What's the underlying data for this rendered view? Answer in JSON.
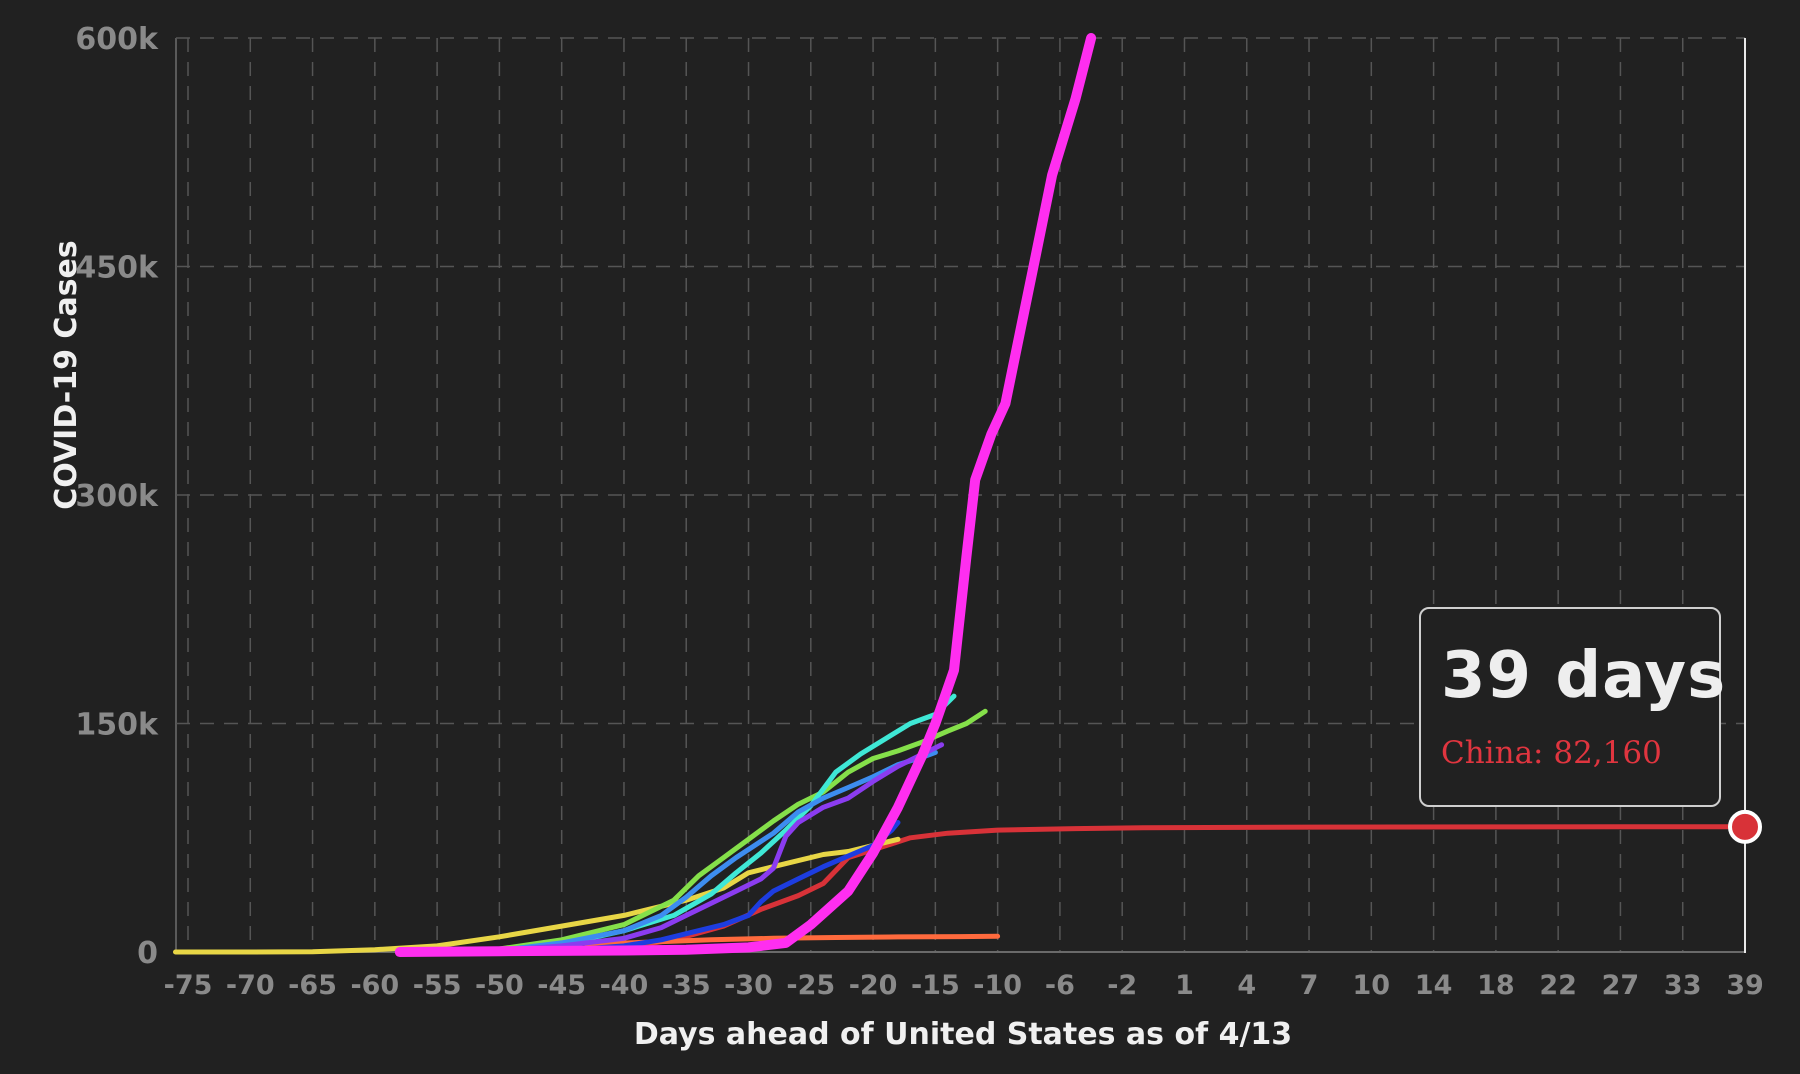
{
  "chart_data": {
    "type": "line",
    "xlabel": "Days ahead of United States as of 4/13",
    "ylabel": "COVID-19 Cases",
    "y_ticks": [
      {
        "value": 0,
        "label": "0"
      },
      {
        "value": 150000,
        "label": "150k"
      },
      {
        "value": 300000,
        "label": "300k"
      },
      {
        "value": 450000,
        "label": "450k"
      },
      {
        "value": 600000,
        "label": "600k"
      }
    ],
    "ylim": [
      0,
      600000
    ],
    "x_tick_labels": [
      "-75",
      "-70",
      "-65",
      "-60",
      "-55",
      "-50",
      "-45",
      "-40",
      "-35",
      "-30",
      "-25",
      "-20",
      "-15",
      "-10",
      "-6",
      "-2",
      "1",
      "4",
      "7",
      "10",
      "14",
      "18",
      "22",
      "27",
      "33",
      "39"
    ],
    "grid": true,
    "series": [
      {
        "color": "#ff2ef0",
        "width": 10,
        "points": [
          [
            -58,
            0
          ],
          [
            -50,
            500
          ],
          [
            -40,
            1000
          ],
          [
            -35,
            1500
          ],
          [
            -30,
            3000
          ],
          [
            -27,
            6000
          ],
          [
            -25,
            18000
          ],
          [
            -22,
            40000
          ],
          [
            -20,
            65000
          ],
          [
            -18,
            95000
          ],
          [
            -16,
            130000
          ],
          [
            -15,
            150000
          ],
          [
            -13.5,
            185000
          ],
          [
            -12.5,
            260000
          ],
          [
            -11.8,
            310000
          ],
          [
            -10.5,
            340000
          ],
          [
            -9.5,
            360000
          ],
          [
            -8.5,
            410000
          ],
          [
            -7.5,
            460000
          ],
          [
            -6.5,
            510000
          ],
          [
            -5,
            560000
          ],
          [
            -4,
            600000
          ]
        ]
      },
      {
        "color": "#d83238",
        "width": 5,
        "points": [
          [
            -43,
            0
          ],
          [
            -40,
            3000
          ],
          [
            -36,
            8000
          ],
          [
            -32,
            17000
          ],
          [
            -29,
            28000
          ],
          [
            -26,
            37000
          ],
          [
            -24,
            45000
          ],
          [
            -22,
            62000
          ],
          [
            -20,
            67000
          ],
          [
            -17,
            75000
          ],
          [
            -14,
            78000
          ],
          [
            -10,
            80000
          ],
          [
            -5,
            81000
          ],
          [
            -1,
            81500
          ],
          [
            7,
            82000
          ],
          [
            18,
            82100
          ],
          [
            27,
            82160
          ],
          [
            39,
            82160
          ]
        ]
      },
      {
        "color": "#ff6a3d",
        "width": 5,
        "points": [
          [
            -43,
            5000
          ],
          [
            -38,
            6500
          ],
          [
            -33,
            8000
          ],
          [
            -28,
            9000
          ],
          [
            -23,
            9500
          ],
          [
            -18,
            9900
          ],
          [
            -13,
            10100
          ],
          [
            -10,
            10300
          ]
        ]
      },
      {
        "color": "#e8d646",
        "width": 5,
        "points": [
          [
            -76,
            0
          ],
          [
            -70,
            0
          ],
          [
            -65,
            200
          ],
          [
            -60,
            1500
          ],
          [
            -55,
            4000
          ],
          [
            -50,
            10000
          ],
          [
            -45,
            17000
          ],
          [
            -40,
            24000
          ],
          [
            -35,
            34000
          ],
          [
            -32,
            42000
          ],
          [
            -30,
            52000
          ],
          [
            -27,
            58000
          ],
          [
            -24,
            64000
          ],
          [
            -22,
            66000
          ],
          [
            -20,
            70000
          ],
          [
            -18,
            74000
          ]
        ]
      },
      {
        "color": "#85e04a",
        "width": 5,
        "points": [
          [
            -55,
            0
          ],
          [
            -50,
            2000
          ],
          [
            -45,
            8000
          ],
          [
            -40,
            18000
          ],
          [
            -36,
            34000
          ],
          [
            -34,
            50000
          ],
          [
            -32,
            62000
          ],
          [
            -30,
            74000
          ],
          [
            -28,
            86000
          ],
          [
            -26,
            97000
          ],
          [
            -24,
            105000
          ],
          [
            -22,
            118000
          ],
          [
            -20,
            127000
          ],
          [
            -18,
            132000
          ],
          [
            -16,
            138000
          ],
          [
            -14,
            145000
          ],
          [
            -12.5,
            150000
          ],
          [
            -11,
            158000
          ]
        ]
      },
      {
        "color": "#3fe8d6",
        "width": 5,
        "points": [
          [
            -55,
            0
          ],
          [
            -50,
            1000
          ],
          [
            -45,
            5000
          ],
          [
            -40,
            14000
          ],
          [
            -36,
            24000
          ],
          [
            -33,
            38000
          ],
          [
            -31,
            52000
          ],
          [
            -29,
            65000
          ],
          [
            -27,
            80000
          ],
          [
            -25,
            96000
          ],
          [
            -23,
            118000
          ],
          [
            -21,
            130000
          ],
          [
            -19,
            140000
          ],
          [
            -17,
            150000
          ],
          [
            -15,
            156000
          ],
          [
            -13.5,
            168000
          ]
        ]
      },
      {
        "color": "#3d8df0",
        "width": 5,
        "points": [
          [
            -55,
            0
          ],
          [
            -50,
            1000
          ],
          [
            -45,
            6000
          ],
          [
            -40,
            14000
          ],
          [
            -37,
            24000
          ],
          [
            -35,
            36000
          ],
          [
            -33,
            50000
          ],
          [
            -31,
            62000
          ],
          [
            -28,
            78000
          ],
          [
            -26,
            92000
          ],
          [
            -24,
            101000
          ],
          [
            -22,
            108000
          ],
          [
            -20,
            115000
          ],
          [
            -18,
            123000
          ],
          [
            -16,
            128000
          ],
          [
            -15,
            131000
          ]
        ]
      },
      {
        "color": "#8b3cf0",
        "width": 5,
        "points": [
          [
            -55,
            0
          ],
          [
            -50,
            1000
          ],
          [
            -45,
            4000
          ],
          [
            -40,
            9000
          ],
          [
            -37,
            16000
          ],
          [
            -35,
            24000
          ],
          [
            -33,
            32000
          ],
          [
            -31,
            40000
          ],
          [
            -29,
            48000
          ],
          [
            -28,
            55000
          ],
          [
            -27,
            76000
          ],
          [
            -26,
            85000
          ],
          [
            -24,
            95000
          ],
          [
            -22,
            101000
          ],
          [
            -20,
            112000
          ],
          [
            -18,
            122000
          ],
          [
            -16,
            130000
          ],
          [
            -14.5,
            136000
          ]
        ]
      },
      {
        "color": "#1d3de0",
        "width": 5,
        "points": [
          [
            -50,
            0
          ],
          [
            -45,
            1000
          ],
          [
            -40,
            4000
          ],
          [
            -37,
            8000
          ],
          [
            -35,
            12000
          ],
          [
            -32,
            18000
          ],
          [
            -30,
            24000
          ],
          [
            -29,
            33000
          ],
          [
            -28,
            40000
          ],
          [
            -26,
            48000
          ],
          [
            -24,
            56000
          ],
          [
            -22,
            63000
          ],
          [
            -20,
            70000
          ],
          [
            -18.5,
            80000
          ],
          [
            -18,
            85000
          ]
        ]
      }
    ],
    "highlight": {
      "x": 39,
      "y": 82160,
      "color": "#d83238"
    }
  },
  "tooltip": {
    "title": "39 days",
    "line": "China: 82,160"
  }
}
